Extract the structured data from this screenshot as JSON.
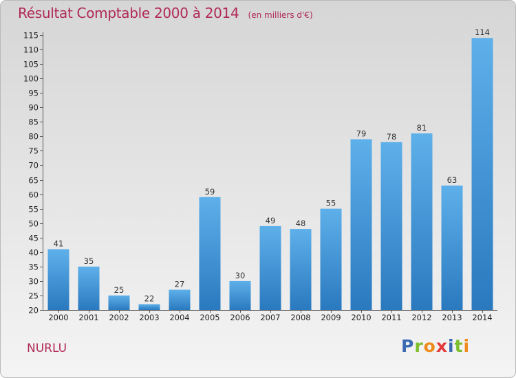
{
  "header": {
    "title": "Résultat Comptable 2000 à 2014",
    "subtitle": "(en milliers d'€)"
  },
  "commune": "NURLU",
  "logo": {
    "text": "Proxiti",
    "letters": [
      {
        "ch": "P",
        "color": "#3b6ab3"
      },
      {
        "ch": "r",
        "color": "#7cbf2b"
      },
      {
        "ch": "o",
        "color": "#f08a1c"
      },
      {
        "ch": "x",
        "color": "#e23a3a"
      },
      {
        "ch": "i",
        "color": "#3b6ab3"
      },
      {
        "ch": "t",
        "color": "#7cbf2b"
      },
      {
        "ch": "i",
        "color": "#f08a1c"
      }
    ]
  },
  "colors": {
    "accent": "#b02a57",
    "bar_top": "#5eb0ea",
    "bar_bottom": "#2a79bf"
  },
  "chart_data": {
    "type": "bar",
    "title": "Résultat Comptable 2000 à 2014",
    "subtitle": "(en milliers d'€)",
    "xlabel": "",
    "ylabel": "",
    "categories": [
      "2000",
      "2001",
      "2002",
      "2003",
      "2004",
      "2005",
      "2006",
      "2007",
      "2008",
      "2009",
      "2010",
      "2011",
      "2012",
      "2013",
      "2014"
    ],
    "values": [
      41,
      35,
      25,
      22,
      27,
      59,
      30,
      49,
      48,
      55,
      79,
      78,
      81,
      63,
      114
    ],
    "ylim": [
      20,
      115
    ],
    "yticks": [
      20,
      25,
      30,
      35,
      40,
      45,
      50,
      55,
      60,
      65,
      70,
      75,
      80,
      85,
      90,
      95,
      100,
      105,
      110,
      115
    ],
    "grid": false,
    "legend": "none"
  }
}
